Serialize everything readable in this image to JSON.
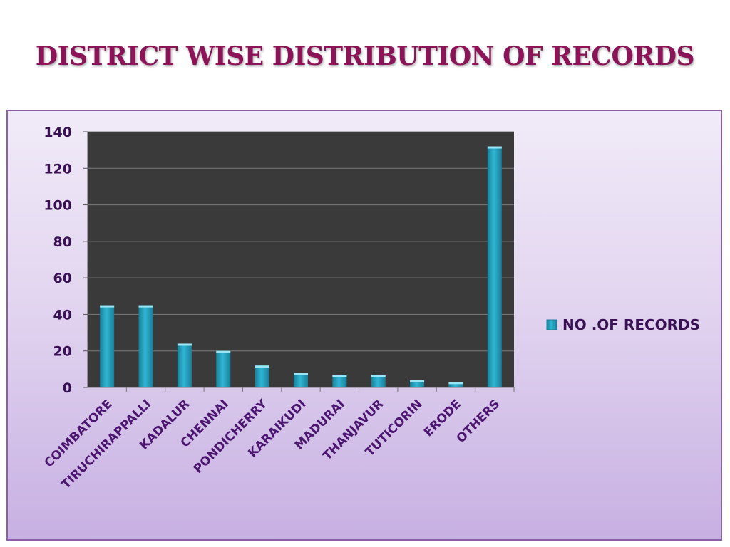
{
  "title": "DISTRICT WISE DISTRIBUTION OF RECORDS",
  "colors": {
    "title": "#8b1458",
    "plot_bg": "#3a3a3a",
    "bar": "#2fb6d4",
    "bar_dark": "#1a7f9a",
    "grid": "#7a7a7a",
    "label": "#4b1570"
  },
  "chart_data": {
    "type": "bar",
    "title": "",
    "xlabel": "",
    "ylabel": "",
    "categories": [
      "COIMBATORE",
      "TIRUCHIRAPPALLI",
      "KADALUR",
      "CHENNAI",
      "PONDICHERRY",
      "KARAIKUDI",
      "MADURAI",
      "THANJAVUR",
      "TUTICORIN",
      "ERODE",
      "OTHERS"
    ],
    "series": [
      {
        "name": "NO .OF RECORDS",
        "values": [
          45,
          45,
          24,
          20,
          12,
          8,
          7,
          7,
          4,
          3,
          132
        ]
      }
    ],
    "ylim": [
      0,
      140
    ],
    "yticks": [
      0,
      20,
      40,
      60,
      80,
      100,
      120,
      140
    ],
    "grid": true,
    "legend_position": "right"
  }
}
